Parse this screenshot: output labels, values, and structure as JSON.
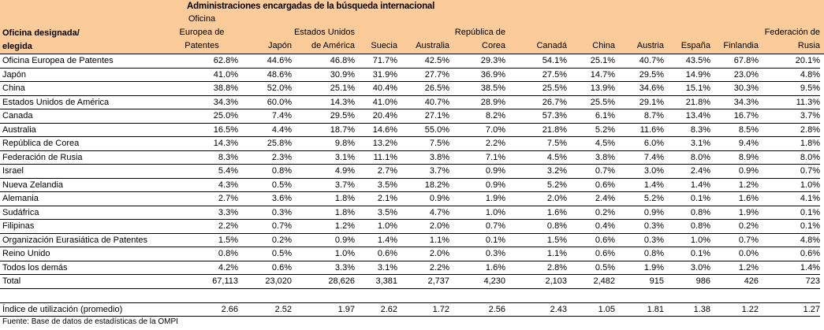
{
  "title": "Administraciones encargadas de la búsqueda internacional",
  "row_header": "Oficina designada/\nelegida",
  "columns": [
    "Oficina\nEuropea de\nPatentes",
    "Japón",
    "Estados Unidos\nde América",
    "Suecia",
    "Australia",
    "República de\nCorea",
    "Canadá",
    "China",
    "Austria",
    "España",
    "Finlandia",
    "Federación de\nRusia"
  ],
  "rows": [
    {
      "label": "Oficina Europea de Patentes",
      "values": [
        "62.8%",
        "44.6%",
        "46.8%",
        "71.7%",
        "42.5%",
        "29.3%",
        "54.1%",
        "25.1%",
        "40.7%",
        "43.5%",
        "67.8%",
        "20.1%"
      ]
    },
    {
      "label": "Japón",
      "values": [
        "41.0%",
        "48.6%",
        "30.9%",
        "31.9%",
        "27.7%",
        "36.9%",
        "27.5%",
        "14.7%",
        "29.5%",
        "14.9%",
        "23.0%",
        "4.8%"
      ]
    },
    {
      "label": "China",
      "values": [
        "38.8%",
        "52.0%",
        "25.1%",
        "40.4%",
        "26.5%",
        "38.5%",
        "25.5%",
        "13.9%",
        "34.6%",
        "15.1%",
        "30.3%",
        "9.5%"
      ]
    },
    {
      "label": "Estados Unidos de América",
      "values": [
        "34.3%",
        "60.0%",
        "14.3%",
        "41.0%",
        "40.7%",
        "28.9%",
        "26.7%",
        "25.5%",
        "29.1%",
        "21.8%",
        "34.3%",
        "11.3%"
      ]
    },
    {
      "label": "Canada",
      "values": [
        "25.0%",
        "7.4%",
        "29.5%",
        "20.4%",
        "27.1%",
        "8.2%",
        "57.3%",
        "6.1%",
        "8.7%",
        "13.4%",
        "16.7%",
        "3.7%"
      ]
    },
    {
      "label": "Australia",
      "values": [
        "16.5%",
        "4.4%",
        "18.7%",
        "14.6%",
        "55.0%",
        "7.0%",
        "21.8%",
        "5.2%",
        "11.6%",
        "8.3%",
        "8.5%",
        "2.8%"
      ]
    },
    {
      "label": "República de Corea",
      "values": [
        "14.3%",
        "25.8%",
        "9.8%",
        "13.2%",
        "7.5%",
        "2.2%",
        "7.5%",
        "4.5%",
        "6.0%",
        "3.1%",
        "9.4%",
        "1.8%"
      ]
    },
    {
      "label": "Federación de Rusia",
      "values": [
        "8.3%",
        "2.3%",
        "3.1%",
        "11.1%",
        "3.8%",
        "7.1%",
        "4.5%",
        "3.8%",
        "7.4%",
        "8.0%",
        "8.9%",
        "8.0%"
      ]
    },
    {
      "label": "Israel",
      "values": [
        "5.4%",
        "0.8%",
        "4.9%",
        "2.7%",
        "3.7%",
        "0.9%",
        "3.2%",
        "0.7%",
        "3.0%",
        "2.4%",
        "0.9%",
        "0.7%"
      ]
    },
    {
      "label": "Nueva Zelandia",
      "values": [
        "4.3%",
        "0.5%",
        "3.7%",
        "3.5%",
        "18.2%",
        "0.9%",
        "5.2%",
        "0.6%",
        "1.4%",
        "1.4%",
        "1.2%",
        "1.0%"
      ]
    },
    {
      "label": "Alemania",
      "values": [
        "2.7%",
        "3.6%",
        "1.8%",
        "2.1%",
        "0.9%",
        "1.9%",
        "2.0%",
        "2.4%",
        "5.2%",
        "0.1%",
        "1.6%",
        "4.1%"
      ]
    },
    {
      "label": "Sudáfrica",
      "values": [
        "3.3%",
        "0.3%",
        "1.8%",
        "3.5%",
        "4.7%",
        "1.0%",
        "1.6%",
        "0.2%",
        "0.9%",
        "0.8%",
        "1.9%",
        "0.1%"
      ]
    },
    {
      "label": "Filipinas",
      "values": [
        "2.2%",
        "0.7%",
        "1.2%",
        "1.0%",
        "2.0%",
        "0.7%",
        "0.8%",
        "0.4%",
        "0.3%",
        "0.8%",
        "0.2%",
        "0.1%"
      ]
    },
    {
      "label": "Organización Eurasiática de Patentes",
      "values": [
        "1.5%",
        "0.2%",
        "0.9%",
        "1.4%",
        "1.1%",
        "0.1%",
        "1.5%",
        "0.6%",
        "0.3%",
        "1.0%",
        "0.7%",
        "4.8%"
      ]
    },
    {
      "label": "Reino Unido",
      "values": [
        "0.8%",
        "0.5%",
        "1.0%",
        "0.6%",
        "2.0%",
        "0.3%",
        "1.1%",
        "0.6%",
        "0.8%",
        "0.1%",
        "0.0%",
        "0.6%"
      ]
    },
    {
      "label": "Todos los demás",
      "values": [
        "4.2%",
        "0.6%",
        "3.3%",
        "3.1%",
        "2.2%",
        "1.6%",
        "2.8%",
        "0.5%",
        "1.9%",
        "3.0%",
        "1.2%",
        "1.4%"
      ]
    },
    {
      "label": "Total",
      "values": [
        "67,113",
        "23,020",
        "28,626",
        "3,381",
        "2,737",
        "4,230",
        "2,103",
        "2,482",
        "915",
        "986",
        "426",
        "723"
      ]
    }
  ],
  "index_row": {
    "label": "Índice de utilización (promedio)",
    "values": [
      "2.66",
      "2.52",
      "1.97",
      "2.62",
      "1.72",
      "2.56",
      "2.43",
      "1.05",
      "1.81",
      "1.38",
      "1.22",
      "1.27"
    ]
  },
  "source": "Fuente:  Base de datos de estadísticas de la OMPI",
  "colors": {
    "header_bg": "#fbcb9a"
  }
}
